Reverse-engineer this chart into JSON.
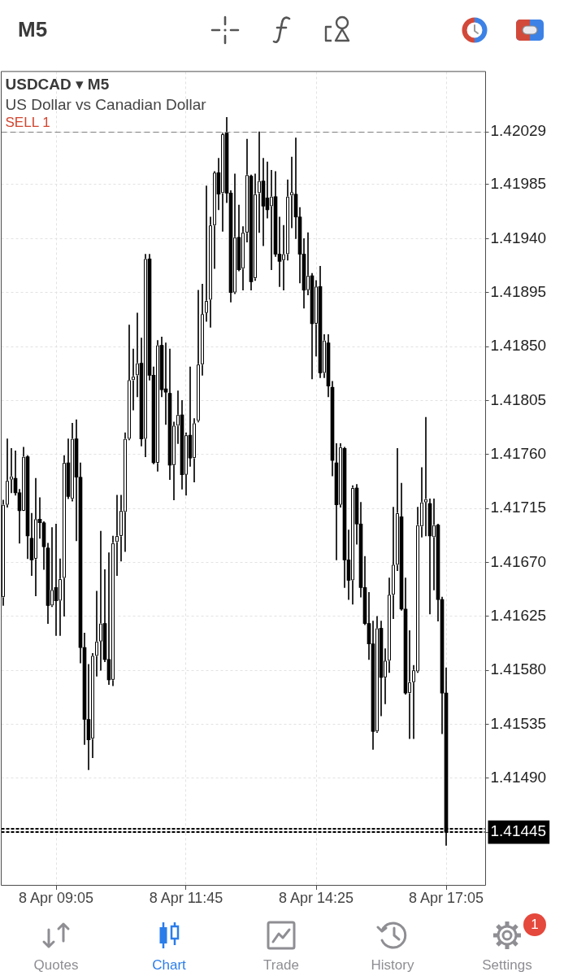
{
  "chart_data": {
    "type": "candlestick",
    "title": "USDCAD ▾ M5",
    "subtitle": "US Dollar vs Canadian Dollar",
    "categories": [
      null,
      null,
      null,
      null,
      null,
      null,
      null,
      null,
      null,
      null,
      null,
      null,
      null,
      "8 Apr 09:05",
      null,
      null,
      null,
      null,
      null,
      null,
      null,
      null,
      null,
      null,
      null,
      null,
      null,
      null,
      null,
      null,
      null,
      null,
      null,
      null,
      null,
      null,
      null,
      null,
      null,
      null,
      null,
      null,
      null,
      null,
      null,
      "8 Apr 11:45",
      null,
      null,
      null,
      null,
      null,
      null,
      null,
      null,
      null,
      null,
      null,
      null,
      null,
      null,
      null,
      null,
      null,
      null,
      null,
      null,
      null,
      null,
      null,
      null,
      null,
      null,
      null,
      null,
      null,
      null,
      null,
      "8 Apr 14:25",
      null,
      null,
      null,
      null,
      null,
      null,
      null,
      null,
      null,
      null,
      null,
      null,
      null,
      null,
      null,
      null,
      null,
      null,
      null,
      null,
      null,
      null,
      null,
      null,
      null,
      null,
      null,
      null,
      null,
      null,
      null,
      "8 Apr 17:05",
      null,
      null,
      null,
      null,
      null,
      null,
      null,
      null,
      null
    ],
    "ohlc": [
      [
        1.41641,
        1.41722,
        1.41634,
        1.41718
      ],
      [
        1.41718,
        1.41773,
        1.41716,
        1.41738
      ],
      [
        1.41739,
        1.41765,
        1.41728,
        1.4174
      ],
      [
        1.4174,
        1.41763,
        1.41726,
        1.41728
      ],
      [
        1.41728,
        1.41731,
        1.41686,
        1.41713
      ],
      [
        1.41713,
        1.41766,
        1.41713,
        1.41758
      ],
      [
        1.41758,
        1.41759,
        1.41673,
        1.41692
      ],
      [
        1.4169,
        1.41711,
        1.41659,
        1.41672
      ],
      [
        1.41673,
        1.4174,
        1.41642,
        1.41706
      ],
      [
        1.41706,
        1.41724,
        1.4169,
        1.41703
      ],
      [
        1.41703,
        1.41704,
        1.41664,
        1.41683
      ],
      [
        1.41682,
        1.41686,
        1.41619,
        1.41634
      ],
      [
        1.41634,
        1.41699,
        1.41633,
        1.41647
      ],
      [
        1.41649,
        1.41702,
        1.41609,
        1.41638
      ],
      [
        1.41638,
        1.41673,
        1.41609,
        1.41656
      ],
      [
        1.41657,
        1.41759,
        1.41625,
        1.41753
      ],
      [
        1.41753,
        1.41773,
        1.41723,
        1.41725
      ],
      [
        1.41723,
        1.41786,
        1.41721,
        1.41773
      ],
      [
        1.41773,
        1.41789,
        1.41688,
        1.41741
      ],
      [
        1.41741,
        1.41753,
        1.41586,
        1.41599
      ],
      [
        1.41599,
        1.41611,
        1.41518,
        1.41539
      ],
      [
        1.41539,
        1.41585,
        1.41497,
        1.41522
      ],
      [
        1.41523,
        1.41594,
        1.41507,
        1.41592
      ],
      [
        1.41592,
        1.41646,
        1.41575,
        1.41604
      ],
      [
        1.41604,
        1.41696,
        1.4158,
        1.41619
      ],
      [
        1.41619,
        1.41664,
        1.41587,
        1.41589
      ],
      [
        1.41589,
        1.41678,
        1.41568,
        1.41572
      ],
      [
        1.41572,
        1.41692,
        1.41567,
        1.41686
      ],
      [
        1.41687,
        1.41726,
        1.41659,
        1.41692
      ],
      [
        1.41692,
        1.41726,
        1.41671,
        1.41713
      ],
      [
        1.41712,
        1.41778,
        1.41679,
        1.41773
      ],
      [
        1.41773,
        1.41868,
        1.41772,
        1.41822
      ],
      [
        1.41822,
        1.41848,
        1.41797,
        1.41825
      ],
      [
        1.41826,
        1.41878,
        1.41808,
        1.41836
      ],
      [
        1.41836,
        1.41857,
        1.41767,
        1.41773
      ],
      [
        1.41773,
        1.41927,
        1.41758,
        1.41923
      ],
      [
        1.41923,
        1.41927,
        1.41822,
        1.41826
      ],
      [
        1.41826,
        1.41833,
        1.41752,
        1.41753
      ],
      [
        1.41753,
        1.41855,
        1.41746,
        1.41851
      ],
      [
        1.41851,
        1.41858,
        1.41808,
        1.41814
      ],
      [
        1.41814,
        1.41853,
        1.41785,
        1.41812
      ],
      [
        1.41811,
        1.41848,
        1.41739,
        1.41751
      ],
      [
        1.41751,
        1.41787,
        1.41722,
        1.41784
      ],
      [
        1.41784,
        1.41813,
        1.41769,
        1.41793
      ],
      [
        1.41793,
        1.41805,
        1.41731,
        1.41743
      ],
      [
        1.41743,
        1.41778,
        1.41726,
        1.41776
      ],
      [
        1.41776,
        1.41833,
        1.4175,
        1.41757
      ],
      [
        1.41757,
        1.4179,
        1.41737,
        1.41786
      ],
      [
        1.41788,
        1.41897,
        1.41787,
        1.41835
      ],
      [
        1.41835,
        1.41902,
        1.41826,
        1.41877
      ],
      [
        1.41878,
        1.41984,
        1.41871,
        1.41888
      ],
      [
        1.41889,
        1.41958,
        1.41866,
        1.41951
      ],
      [
        1.41951,
        1.41996,
        1.41915,
        1.41995
      ],
      [
        1.41995,
        1.42007,
        1.41964,
        1.41977
      ],
      [
        1.41978,
        1.42028,
        1.41946,
        1.42027
      ],
      [
        1.42028,
        1.42041,
        1.4197,
        1.41978
      ],
      [
        1.41978,
        1.4198,
        1.41887,
        1.41895
      ],
      [
        1.41895,
        1.41994,
        1.41894,
        1.41941
      ],
      [
        1.41941,
        1.41968,
        1.41913,
        1.41914
      ],
      [
        1.41915,
        1.4195,
        1.41897,
        1.41945
      ],
      [
        1.41945,
        1.42023,
        1.41937,
        1.41993
      ],
      [
        1.41992,
        1.41993,
        1.41897,
        1.41904
      ],
      [
        1.41907,
        1.41994,
        1.41905,
        1.41977
      ],
      [
        1.41978,
        1.42029,
        1.41945,
        1.41988
      ],
      [
        1.41988,
        1.42007,
        1.41934,
        1.41967
      ],
      [
        1.41974,
        1.42004,
        1.41957,
        1.41964
      ],
      [
        1.41967,
        1.41997,
        1.41914,
        1.41975
      ],
      [
        1.41975,
        1.41996,
        1.41925,
        1.41927
      ],
      [
        1.41927,
        1.41958,
        1.419,
        1.41921
      ],
      [
        1.41922,
        1.41951,
        1.41897,
        1.41927
      ],
      [
        1.41927,
        1.41989,
        1.41922,
        1.41975
      ],
      [
        1.41976,
        1.42008,
        1.41949,
        1.41977
      ],
      [
        1.41977,
        1.42024,
        1.4194,
        1.41958
      ],
      [
        1.41958,
        1.41966,
        1.41903,
        1.41927
      ],
      [
        1.41927,
        1.4194,
        1.41882,
        1.41897
      ],
      [
        1.41897,
        1.41945,
        1.41893,
        1.41909
      ],
      [
        1.41909,
        1.41911,
        1.41823,
        1.41869
      ],
      [
        1.41869,
        1.41905,
        1.41842,
        1.419
      ],
      [
        1.419,
        1.41917,
        1.41824,
        1.41828
      ],
      [
        1.41828,
        1.4186,
        1.41824,
        1.41855
      ],
      [
        1.41853,
        1.4186,
        1.41808,
        1.41817
      ],
      [
        1.41816,
        1.41821,
        1.41742,
        1.41755
      ],
      [
        1.41753,
        1.41769,
        1.41672,
        1.41718
      ],
      [
        1.41718,
        1.41769,
        1.41716,
        1.41766
      ],
      [
        1.41765,
        1.41766,
        1.41649,
        1.41672
      ],
      [
        1.41672,
        1.41697,
        1.41639,
        1.41655
      ],
      [
        1.41655,
        1.41734,
        1.41635,
        1.41732
      ],
      [
        1.41732,
        1.41735,
        1.41685,
        1.41702
      ],
      [
        1.41702,
        1.4172,
        1.41641,
        1.41649
      ],
      [
        1.41649,
        1.41675,
        1.41618,
        1.41619
      ],
      [
        1.41619,
        1.41645,
        1.41589,
        1.41602
      ],
      [
        1.41602,
        1.41621,
        1.41514,
        1.41529
      ],
      [
        1.41529,
        1.41625,
        1.41528,
        1.41615
      ],
      [
        1.41615,
        1.41621,
        1.41542,
        1.41574
      ],
      [
        1.41574,
        1.41598,
        1.41552,
        1.41588
      ],
      [
        1.41588,
        1.41657,
        1.41578,
        1.41643
      ],
      [
        1.41643,
        1.41716,
        1.41623,
        1.41668
      ],
      [
        1.41668,
        1.41765,
        1.41663,
        1.41711
      ],
      [
        1.41708,
        1.41736,
        1.4163,
        1.41631
      ],
      [
        1.41631,
        1.41657,
        1.4156,
        1.41561
      ],
      [
        1.41561,
        1.41613,
        1.41523,
        1.4157
      ],
      [
        1.4157,
        1.41584,
        1.41523,
        1.4158
      ],
      [
        1.41579,
        1.41716,
        1.41578,
        1.41701
      ],
      [
        1.417,
        1.41749,
        1.41691,
        1.4172
      ],
      [
        1.4172,
        1.41791,
        1.41692,
        1.41721
      ],
      [
        1.41719,
        1.41723,
        1.41627,
        1.41692
      ],
      [
        1.41691,
        1.41723,
        1.41647,
        1.41701
      ],
      [
        1.41701,
        1.41702,
        1.41621,
        1.41639
      ],
      [
        1.41639,
        1.41641,
        1.41527,
        1.41561
      ],
      [
        1.41561,
        1.41582,
        1.41434,
        1.41445
      ],
      null,
      null,
      null,
      null,
      null,
      null,
      null,
      null,
      null
    ],
    "colors": [
      "#ffffff",
      "#ffffff",
      "#ffffff",
      "#000000",
      "#000000",
      "#ffffff",
      "#000000",
      "#000000",
      "#ffffff",
      "#000000",
      "#000000",
      "#000000",
      "#ffffff",
      "#000000",
      "#ffffff",
      "#ffffff",
      "#000000",
      "#ffffff",
      "#000000",
      "#000000",
      "#000000",
      "#000000",
      "#ffffff",
      "#ffffff",
      "#ffffff",
      "#000000",
      "#000000",
      "#ffffff",
      "#ffffff",
      "#ffffff",
      "#ffffff",
      "#ffffff",
      "#ffffff",
      "#ffffff",
      "#000000",
      "#ffffff",
      "#000000",
      "#000000",
      "#ffffff",
      "#000000",
      "#000000",
      "#000000",
      "#ffffff",
      "#ffffff",
      "#000000",
      "#ffffff",
      "#000000",
      "#ffffff",
      "#ffffff",
      "#ffffff",
      "#ffffff",
      "#ffffff",
      "#ffffff",
      "#000000",
      "#ffffff",
      "#000000",
      "#000000",
      "#ffffff",
      "#000000",
      "#ffffff",
      "#ffffff",
      "#000000",
      "#ffffff",
      "#ffffff",
      "#000000",
      "#000000",
      "#ffffff",
      "#000000",
      "#000000",
      "#ffffff",
      "#ffffff",
      "#ffffff",
      "#000000",
      "#000000",
      "#000000",
      "#ffffff",
      "#000000",
      "#ffffff",
      "#000000",
      "#ffffff",
      "#000000",
      "#000000",
      "#000000",
      "#ffffff",
      "#000000",
      "#000000",
      "#ffffff",
      "#000000",
      "#000000",
      "#000000",
      "#000000",
      "#000000",
      "#ffffff",
      "#000000",
      "#ffffff",
      "#ffffff",
      "#ffffff",
      "#ffffff",
      "#000000",
      "#000000",
      "#ffffff",
      "#ffffff",
      "#ffffff",
      "#ffffff",
      "#ffffff",
      "#000000",
      "#ffffff",
      "#000000",
      "#000000",
      "#000000",
      null,
      null,
      null,
      null,
      null,
      null,
      null,
      null,
      null
    ],
    "color": "#000000",
    "ylim": [
      1.41401,
      1.42079
    ],
    "yticks": [
      1.41445,
      {
        "value": 1.4149,
        "label": "1.41490"
      },
      1.41535,
      {
        "value": 1.4158,
        "label": "1.41580"
      },
      1.41625,
      {
        "value": 1.4167,
        "label": "1.41670"
      },
      1.41715,
      {
        "value": 1.4176,
        "label": "1.41760"
      },
      1.41805,
      {
        "value": 1.4185,
        "label": "1.41850"
      },
      1.41895,
      {
        "value": 1.4194,
        "label": "1.41940"
      },
      1.41985,
      1.42029
    ],
    "grid": true,
    "ref_lines": [
      {
        "axis": "y",
        "value": 1.42029,
        "label": "SELL 1",
        "color": "#7f7f7f",
        "line_style": "dashed"
      },
      {
        "axis": "y",
        "value": 1.41448,
        "color": "#000000",
        "line_style": "dotted"
      },
      {
        "axis": "y",
        "value": 1.41445,
        "color": "#000000",
        "line_style": "dotted"
      }
    ],
    "annotations": [
      "M5",
      "Quotes",
      "Chart",
      "Trade",
      "History",
      "Settings",
      "1"
    ]
  }
}
